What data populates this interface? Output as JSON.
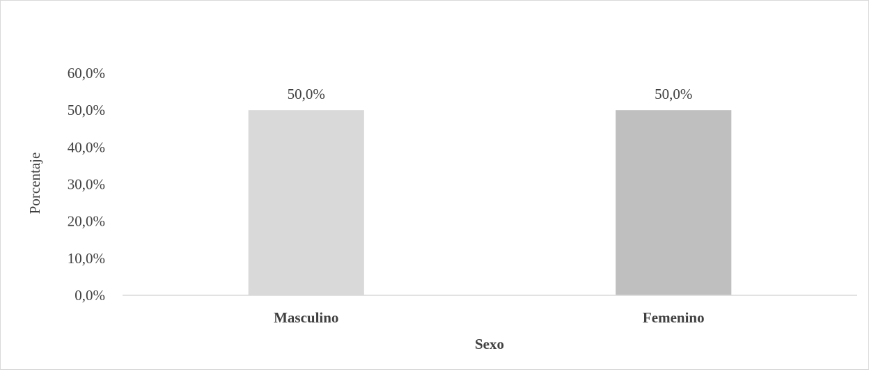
{
  "chart_data": {
    "type": "bar",
    "categories": [
      "Masculino",
      "Femenino"
    ],
    "values": [
      50.0,
      50.0
    ],
    "value_labels": [
      "50,0%",
      "50,0%"
    ],
    "colors": [
      "#d9d9d9",
      "#bfbfbf"
    ],
    "xlabel": "Sexo",
    "ylabel": "Porcentaje",
    "ylim": [
      0,
      60
    ],
    "yticks": [
      0,
      10,
      20,
      30,
      40,
      50,
      60
    ],
    "ytick_labels": [
      "0,0%",
      "10,0%",
      "20,0%",
      "30,0%",
      "40,0%",
      "50,0%",
      "60,0%"
    ],
    "grid": false,
    "legend": "none"
  }
}
